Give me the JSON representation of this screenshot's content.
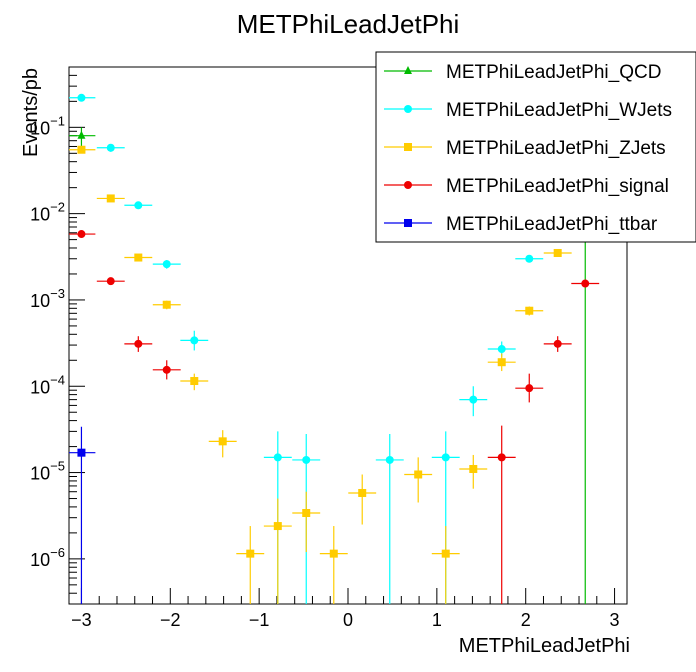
{
  "chart_data": {
    "type": "scatter",
    "title": "METPhiLeadJetPhi",
    "xlabel": "METPhiLeadJetPhi",
    "ylabel": "Events/pb",
    "xlim": [
      -3.14,
      3.14
    ],
    "ylim": [
      3e-07,
      0.5
    ],
    "yscale": "log",
    "x_ticks": [
      -3,
      -2,
      -1,
      0,
      1,
      2,
      3
    ],
    "x_tick_labels": [
      "−3",
      "−2",
      "−1",
      "0",
      "1",
      "2",
      "3"
    ],
    "y_ticks": [
      1e-06,
      1e-05,
      0.0001,
      0.001,
      0.01,
      0.1
    ],
    "y_tick_labels": [
      {
        "base": "10",
        "exp": "−6"
      },
      {
        "base": "10",
        "exp": "−5"
      },
      {
        "base": "10",
        "exp": "−4"
      },
      {
        "base": "10",
        "exp": "−3"
      },
      {
        "base": "10",
        "exp": "−2"
      },
      {
        "base": "10",
        "exp": "−1"
      }
    ],
    "bin_width": 0.314,
    "grid": false,
    "legend_position": "top-right",
    "series": [
      {
        "name": "METPhiLeadJetPhi_QCD",
        "color": "#00bb00",
        "marker": "triangle",
        "points": [
          {
            "x": -3.0,
            "y": 0.08,
            "ylo": 0.06,
            "yhi": 0.1
          },
          {
            "x": 2.67,
            "y": 0.02,
            "ylo": 3e-07,
            "yhi": 0.08
          }
        ]
      },
      {
        "name": "METPhiLeadJetPhi_WJets",
        "color": "#00ffff",
        "marker": "circle",
        "points": [
          {
            "x": -3.0,
            "y": 0.22,
            "ylo": 0.2,
            "yhi": 0.24
          },
          {
            "x": -2.67,
            "y": 0.058,
            "ylo": 0.052,
            "yhi": 0.064
          },
          {
            "x": -2.36,
            "y": 0.0125,
            "ylo": 0.0113,
            "yhi": 0.0137
          },
          {
            "x": -2.04,
            "y": 0.0026,
            "ylo": 0.0023,
            "yhi": 0.0029
          },
          {
            "x": -1.73,
            "y": 0.00034,
            "ylo": 0.00026,
            "yhi": 0.00044
          },
          {
            "x": -0.79,
            "y": 1.5e-05,
            "ylo": 3e-07,
            "yhi": 3e-05
          },
          {
            "x": -0.47,
            "y": 1.4e-05,
            "ylo": 3e-07,
            "yhi": 2.8e-05
          },
          {
            "x": 0.47,
            "y": 1.4e-05,
            "ylo": 3e-07,
            "yhi": 2.8e-05
          },
          {
            "x": 1.1,
            "y": 1.5e-05,
            "ylo": 3e-07,
            "yhi": 3e-05
          },
          {
            "x": 1.41,
            "y": 7e-05,
            "ylo": 4.5e-05,
            "yhi": 0.0001
          },
          {
            "x": 1.73,
            "y": 0.00027,
            "ylo": 0.00022,
            "yhi": 0.00033
          },
          {
            "x": 2.04,
            "y": 0.003,
            "ylo": 0.0028,
            "yhi": 0.0032
          },
          {
            "x": 2.36,
            "y": 0.02,
            "ylo": 0.018,
            "yhi": 0.022
          }
        ]
      },
      {
        "name": "METPhiLeadJetPhi_ZJets",
        "color": "#ffcc00",
        "marker": "square",
        "points": [
          {
            "x": -3.0,
            "y": 0.055,
            "ylo": 0.052,
            "yhi": 0.058
          },
          {
            "x": -2.67,
            "y": 0.015,
            "ylo": 0.0143,
            "yhi": 0.0157
          },
          {
            "x": -2.36,
            "y": 0.0031,
            "ylo": 0.0029,
            "yhi": 0.0033
          },
          {
            "x": -2.04,
            "y": 0.00088,
            "ylo": 0.00078,
            "yhi": 0.00098
          },
          {
            "x": -1.73,
            "y": 0.000115,
            "ylo": 9e-05,
            "yhi": 0.00014
          },
          {
            "x": -1.41,
            "y": 2.3e-05,
            "ylo": 1.5e-05,
            "yhi": 3.1e-05
          },
          {
            "x": -1.1,
            "y": 1.15e-06,
            "ylo": 3e-07,
            "yhi": 2.4e-06
          },
          {
            "x": -0.79,
            "y": 2.4e-06,
            "ylo": 3e-07,
            "yhi": 5e-06
          },
          {
            "x": -0.47,
            "y": 3.4e-06,
            "ylo": 1.2e-06,
            "yhi": 6e-06
          },
          {
            "x": -0.16,
            "y": 1.15e-06,
            "ylo": 3e-07,
            "yhi": 2.4e-06
          },
          {
            "x": 0.16,
            "y": 5.8e-06,
            "ylo": 2.5e-06,
            "yhi": 9.5e-06
          },
          {
            "x": 0.79,
            "y": 9.5e-06,
            "ylo": 4.5e-06,
            "yhi": 1.5e-05
          },
          {
            "x": 1.1,
            "y": 1.15e-06,
            "ylo": 3e-07,
            "yhi": 2.4e-06
          },
          {
            "x": 1.41,
            "y": 1.1e-05,
            "ylo": 6.5e-06,
            "yhi": 1.6e-05
          },
          {
            "x": 1.73,
            "y": 0.00019,
            "ylo": 0.00015,
            "yhi": 0.00024
          },
          {
            "x": 2.04,
            "y": 0.00075,
            "ylo": 0.00066,
            "yhi": 0.00084
          },
          {
            "x": 2.36,
            "y": 0.0035,
            "ylo": 0.0033,
            "yhi": 0.0037
          }
        ]
      },
      {
        "name": "METPhiLeadJetPhi_signal",
        "color": "#ee0000",
        "marker": "circle",
        "points": [
          {
            "x": -3.0,
            "y": 0.0058,
            "ylo": 0.0054,
            "yhi": 0.0062
          },
          {
            "x": -2.67,
            "y": 0.00165,
            "ylo": 0.00151,
            "yhi": 0.00179
          },
          {
            "x": -2.36,
            "y": 0.00031,
            "ylo": 0.00025,
            "yhi": 0.00038
          },
          {
            "x": -2.04,
            "y": 0.000155,
            "ylo": 0.00012,
            "yhi": 0.0002
          },
          {
            "x": 1.73,
            "y": 1.5e-05,
            "ylo": 3e-07,
            "yhi": 3.5e-05
          },
          {
            "x": 2.04,
            "y": 9.5e-05,
            "ylo": 6.5e-05,
            "yhi": 0.00014
          },
          {
            "x": 2.36,
            "y": 0.00031,
            "ylo": 0.00025,
            "yhi": 0.00038
          },
          {
            "x": 2.67,
            "y": 0.00155,
            "ylo": 0.00141,
            "yhi": 0.00169
          }
        ]
      },
      {
        "name": "METPhiLeadJetPhi_ttbar",
        "color": "#0000ee",
        "marker": "square",
        "points": [
          {
            "x": -3.0,
            "y": 1.7e-05,
            "ylo": 3e-07,
            "yhi": 3.4e-05
          }
        ]
      }
    ]
  }
}
